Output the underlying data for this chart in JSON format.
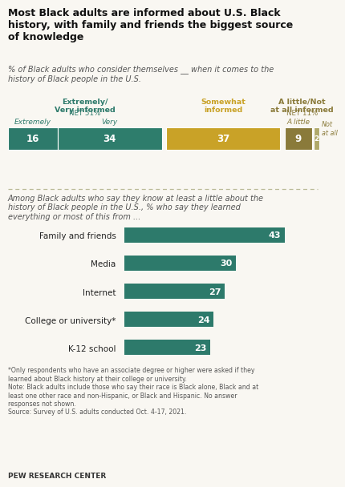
{
  "title": "Most Black adults are informed about U.S. Black history, with family and friends the biggest source of knowledge",
  "subtitle1": "% of Black adults who consider themselves __ when it comes to the\nhistory of Black people in the U.S.",
  "stacked_values": [
    16,
    34,
    37,
    9,
    2
  ],
  "stacked_colors": [
    "#2d7a6b",
    "#2e7d6c",
    "#c9a227",
    "#8a7a3a",
    "#b0a96a"
  ],
  "stacked_labels": [
    "16",
    "34",
    "37",
    "9",
    "2"
  ],
  "sublabels": [
    "Extremely",
    "Very",
    "",
    "A little",
    "Not\nat all"
  ],
  "sublabel_colors": [
    "#2d7a6b",
    "#2d7a6b",
    "",
    "#8a7a3a",
    "#8a7a3a"
  ],
  "group_header_texts": [
    "Extremely/\nVery informed",
    "Somewhat\ninformed",
    "A little/Not\nat all informed"
  ],
  "group_header_colors": [
    "#2d7a6b",
    "#c9a227",
    "#8a7a3a"
  ],
  "group_net_texts": [
    "NET 51%",
    "",
    "NET 11%"
  ],
  "group_net_colors": [
    "#2d7a6b",
    "",
    "#8a7a3a"
  ],
  "subtitle2": "Among Black adults who say they know at least a little about the\nhistory of Black people in the U.S., % who say they learned\neverything or most of this from ...",
  "bar_categories": [
    "Family and friends",
    "Media",
    "Internet",
    "College or university*",
    "K-12 school"
  ],
  "bar_values": [
    43,
    30,
    27,
    24,
    23
  ],
  "bar_color": "#2d7a6b",
  "footnote1": "*Only respondents who have an associate degree or higher were asked if they\nlearned about Black history at their college or university.",
  "footnote2": "Note: Black adults include those who say their race is Black alone, Black and at\nleast one other race and non-Hispanic, or Black and Hispanic. No answer\nresponses not shown.",
  "footnote3": "Source: Survey of U.S. adults conducted Oct. 4-17, 2021.",
  "source_label": "PEW RESEARCH CENTER",
  "bg_color": "#f9f7f2"
}
